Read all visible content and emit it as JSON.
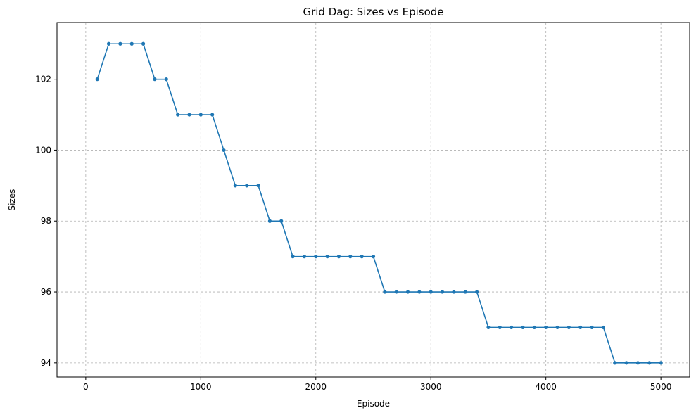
{
  "chart_data": {
    "type": "line",
    "title": "Grid Dag: Sizes vs Episode",
    "xlabel": "Episode",
    "ylabel": "Sizes",
    "xlim": [
      -250,
      5250
    ],
    "ylim": [
      93.6,
      103.6
    ],
    "xticks": [
      0,
      1000,
      2000,
      3000,
      4000,
      5000
    ],
    "yticks": [
      94,
      96,
      98,
      100,
      102
    ],
    "grid": true,
    "marker": "circle",
    "color": "#1f77b4",
    "series": [
      {
        "x": [
          100,
          200,
          300,
          400,
          500,
          600,
          700,
          800,
          900,
          1000,
          1100,
          1200,
          1300,
          1400,
          1500,
          1600,
          1700,
          1800,
          1900,
          2000,
          2100,
          2200,
          2300,
          2400,
          2500,
          2600,
          2700,
          2800,
          2900,
          3000,
          3100,
          3200,
          3300,
          3400,
          3500,
          3600,
          3700,
          3800,
          3900,
          4000,
          4100,
          4200,
          4300,
          4400,
          4500,
          4600,
          4700,
          4800,
          4900,
          5000
        ],
        "values": [
          102,
          103,
          103,
          103,
          103,
          102,
          102,
          101,
          101,
          101,
          101,
          100,
          99,
          99,
          99,
          98,
          98,
          97,
          97,
          97,
          97,
          97,
          97,
          97,
          97,
          96,
          96,
          96,
          96,
          96,
          96,
          96,
          96,
          96,
          95,
          95,
          95,
          95,
          95,
          95,
          95,
          95,
          95,
          95,
          95,
          94,
          94,
          94,
          94,
          94
        ]
      }
    ]
  }
}
